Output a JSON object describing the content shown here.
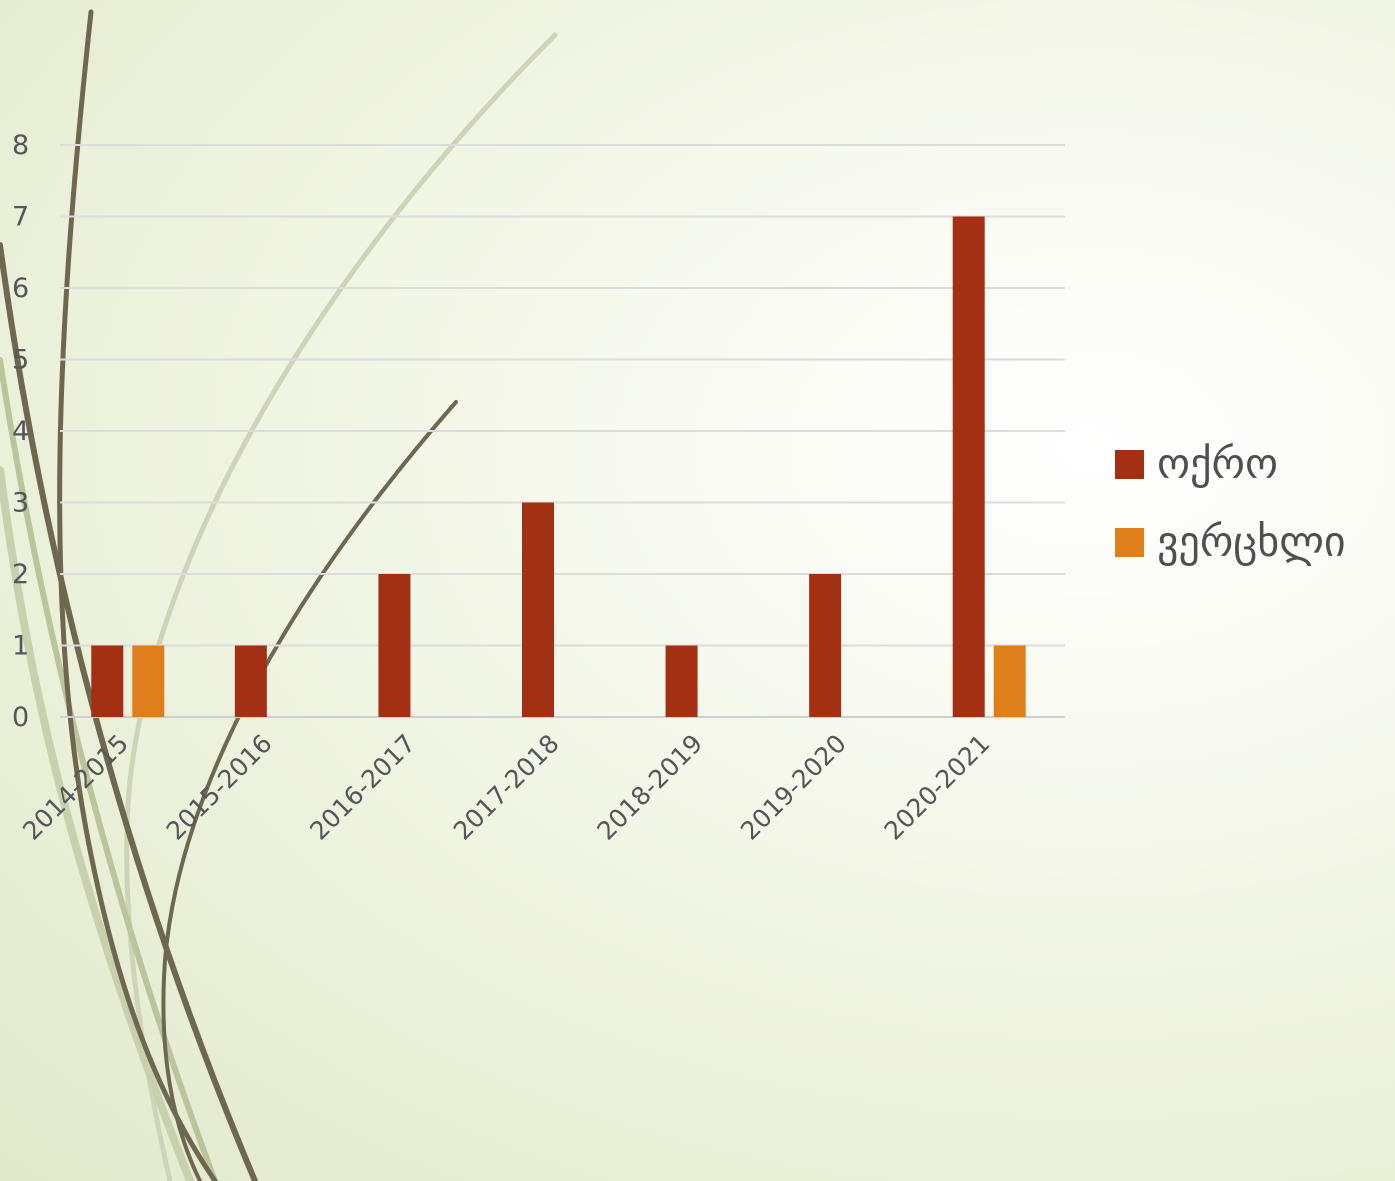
{
  "chart_data": {
    "type": "bar",
    "categories": [
      "2014-2015",
      "2015-2016",
      "2016-2017",
      "2017-2018",
      "2018-2019",
      "2019-2020",
      "2020-2021"
    ],
    "series": [
      {
        "name": "ოქრო",
        "values": [
          1,
          1,
          2,
          3,
          1,
          2,
          7
        ],
        "color": "#a33012"
      },
      {
        "name": "ვერცხლი",
        "values": [
          1,
          0,
          0,
          0,
          0,
          0,
          1
        ],
        "color": "#df7f1c"
      }
    ],
    "ylim": [
      0,
      8
    ],
    "yticks": [
      0,
      1,
      2,
      3,
      4,
      5,
      6,
      7,
      8
    ],
    "grid": true,
    "legend": "right",
    "title": "",
    "xlabel": "",
    "ylabel": ""
  }
}
